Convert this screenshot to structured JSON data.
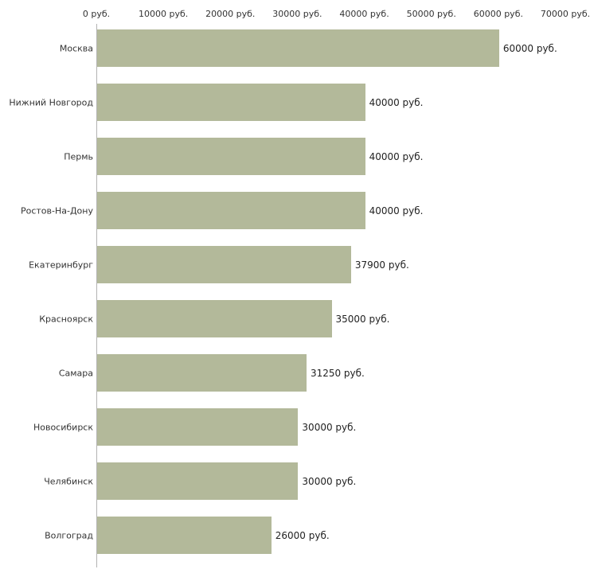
{
  "chart_data": {
    "type": "bar",
    "orientation": "horizontal",
    "title": "",
    "xlabel": "",
    "ylabel": "",
    "categories": [
      "Москва",
      "Нижний Новгород",
      "Пермь",
      "Ростов-На-Дону",
      "Екатеринбург",
      "Красноярск",
      "Самара",
      "Новосибирск",
      "Челябинск",
      "Волгоград"
    ],
    "values": [
      60000,
      40000,
      40000,
      40000,
      37900,
      35000,
      31250,
      30000,
      30000,
      26000
    ],
    "value_labels": [
      "60000 руб.",
      "40000 руб.",
      "40000 руб.",
      "40000 руб.",
      "37900 руб.",
      "35000 руб.",
      "31250 руб.",
      "30000 руб.",
      "30000 руб.",
      "26000 руб."
    ],
    "xlim": [
      0,
      70000
    ],
    "x_tick_values": [
      0,
      10000,
      20000,
      30000,
      40000,
      50000,
      60000,
      70000
    ],
    "x_tick_labels": [
      "0 руб.",
      "10000 руб.",
      "20000 руб.",
      "30000 руб.",
      "40000 руб.",
      "50000 руб.",
      "60000 руб.",
      "70000 руб."
    ],
    "grid": false,
    "legend": false,
    "axis_position": "top",
    "bar_color": "#b3b99a",
    "axis_color": "#b3b3b3",
    "text_color": "#333333"
  }
}
